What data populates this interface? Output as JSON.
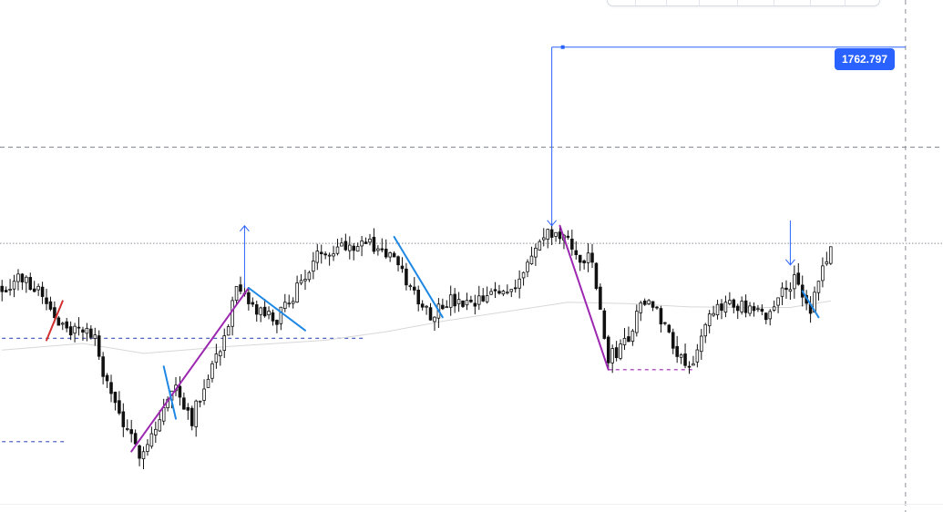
{
  "price_badge": {
    "label": "1762.797",
    "color": "#2962ff"
  },
  "chart_data": {
    "type": "candlestick",
    "title": "",
    "xlabel": "",
    "ylabel": "",
    "grid": false,
    "ylim": [
      1693,
      1770
    ],
    "candles": {
      "count": 206,
      "close_path": [
        [
          0,
          1726.0
        ],
        [
          4,
          1727.5
        ],
        [
          9,
          1726.0
        ],
        [
          14,
          1721.0
        ],
        [
          17,
          1718.5
        ],
        [
          19,
          1720.5
        ],
        [
          23,
          1718.0
        ],
        [
          26,
          1711.0
        ],
        [
          29,
          1707.0
        ],
        [
          31,
          1703.5
        ],
        [
          34,
          1701.0
        ],
        [
          38,
          1704.5
        ],
        [
          40,
          1707.5
        ],
        [
          43,
          1711.0
        ],
        [
          47,
          1706.0
        ],
        [
          51,
          1713.0
        ],
        [
          55,
          1718.5
        ],
        [
          58,
          1725.5
        ],
        [
          60,
          1724.0
        ],
        [
          63,
          1722.5
        ],
        [
          68,
          1721.0
        ],
        [
          74,
          1727.0
        ],
        [
          79,
          1731.5
        ],
        [
          83,
          1732.5
        ],
        [
          90,
          1733.0
        ],
        [
          96,
          1731.0
        ],
        [
          101,
          1726.0
        ],
        [
          106,
          1722.0
        ],
        [
          110,
          1724.0
        ],
        [
          116,
          1723.0
        ],
        [
          121,
          1725.0
        ],
        [
          126,
          1726.0
        ],
        [
          130,
          1729.5
        ],
        [
          133,
          1733.0
        ],
        [
          136,
          1734.5
        ],
        [
          139,
          1733.5
        ],
        [
          142,
          1731.0
        ],
        [
          146,
          1730.0
        ],
        [
          149,
          1718.5
        ],
        [
          150,
          1715.0
        ],
        [
          155,
          1718.5
        ],
        [
          159,
          1724.5
        ],
        [
          163,
          1721.5
        ],
        [
          167,
          1716.5
        ],
        [
          170,
          1714.0
        ],
        [
          175,
          1721.0
        ],
        [
          180,
          1724.5
        ],
        [
          184,
          1722.5
        ],
        [
          189,
          1721.5
        ],
        [
          193,
          1725.5
        ],
        [
          196,
          1727.5
        ],
        [
          198,
          1724.0
        ],
        [
          200,
          1722.5
        ],
        [
          203,
          1729.0
        ],
        [
          205,
          1732.0
        ]
      ]
    },
    "horizontal_levels": [
      {
        "name": "upper-dashed-level",
        "value": 1747.5,
        "style": "dashed"
      },
      {
        "name": "current-price-line",
        "value": 1732.8,
        "style": "dotted"
      },
      {
        "name": "blue-left-level",
        "value": 1718.3,
        "style": "dashed",
        "from": 0,
        "to": 90
      },
      {
        "name": "blue-left-low-level",
        "value": 1702.5,
        "style": "dashed",
        "from": 0,
        "to": 16
      },
      {
        "name": "purple-level",
        "value": 1713.5,
        "style": "dashed",
        "from": 150,
        "to": 171
      }
    ],
    "vertical_marker": {
      "name": "session-divider",
      "x": 223.5,
      "style": "dashed"
    },
    "zigzag_lines": [
      {
        "name": "red-short-leg",
        "color": "#d32f2f",
        "points": [
          [
            11,
            1718.0
          ],
          [
            15,
            1724.0
          ]
        ]
      },
      {
        "name": "purple-leg-1",
        "color": "#9c27b0",
        "points": [
          [
            32,
            1701.0
          ],
          [
            61,
            1726.0
          ]
        ]
      },
      {
        "name": "purple-leg-2",
        "color": "#9c27b0",
        "points": [
          [
            138,
            1735.5
          ],
          [
            150,
            1713.5
          ]
        ]
      },
      {
        "name": "blue-leg-1",
        "color": "#1e88e5",
        "points": [
          [
            40,
            1714.0
          ],
          [
            43,
            1706.0
          ]
        ]
      },
      {
        "name": "blue-leg-2",
        "color": "#1e88e5",
        "points": [
          [
            61,
            1726.0
          ],
          [
            75,
            1719.5
          ]
        ]
      },
      {
        "name": "blue-leg-3",
        "color": "#1e88e5",
        "points": [
          [
            97,
            1733.8
          ],
          [
            109,
            1721.5
          ]
        ]
      },
      {
        "name": "blue-leg-4",
        "color": "#1e88e5",
        "points": [
          [
            198,
            1725.5
          ],
          [
            202,
            1721.5
          ]
        ]
      }
    ],
    "arrow_markers": [
      {
        "name": "up-arrow",
        "x": 60,
        "y_start": 1726.0,
        "y_end": 1735.5,
        "direction": "up"
      },
      {
        "name": "target-arrow",
        "x": 136,
        "y_start": 1762.797,
        "y_end": 1735.5,
        "direction": "down"
      },
      {
        "name": "down-arrow",
        "x": 195,
        "y_start": 1736.3,
        "y_end": 1729.5,
        "direction": "down"
      }
    ],
    "target_line": {
      "name": "target-horizontal-line",
      "value": 1762.797,
      "x_start": 136,
      "x_end": 223.5
    },
    "moving_average": {
      "name": "gray-moving-average",
      "points": [
        [
          0,
          1716.5
        ],
        [
          20,
          1717.5
        ],
        [
          35,
          1716.0
        ],
        [
          55,
          1717.0
        ],
        [
          80,
          1718.0
        ],
        [
          95,
          1719.3
        ],
        [
          110,
          1721.0
        ],
        [
          125,
          1722.4
        ],
        [
          140,
          1723.8
        ],
        [
          155,
          1723.6
        ],
        [
          170,
          1723.1
        ],
        [
          185,
          1723.0
        ],
        [
          195,
          1723.0
        ],
        [
          205,
          1724.0
        ]
      ]
    }
  }
}
